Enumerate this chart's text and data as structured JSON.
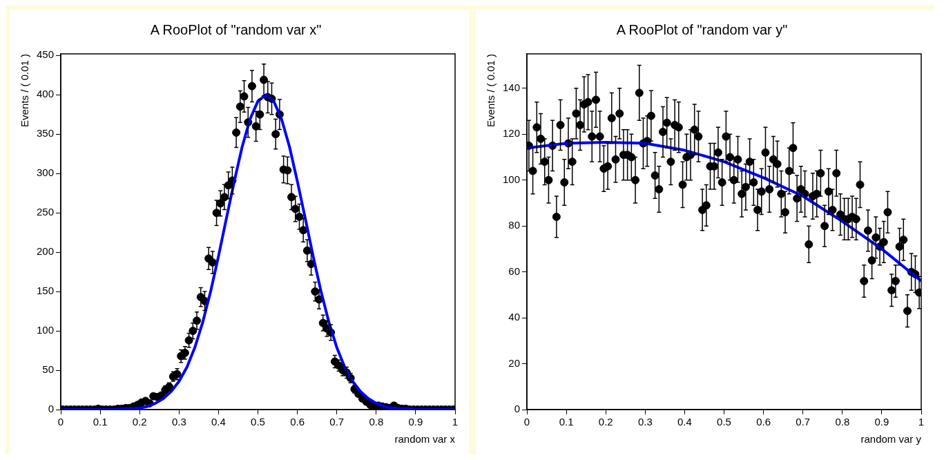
{
  "chart_data": [
    {
      "type": "scatter",
      "title": "A RooPlot of \"random var x\"",
      "xlabel": "random var x",
      "ylabel": "Events / ( 0.01 )",
      "xlim": [
        0,
        1
      ],
      "ylim": [
        0,
        452
      ],
      "xticks": [
        0,
        0.1,
        0.2,
        0.3,
        0.4,
        0.5,
        0.6,
        0.7,
        0.8,
        0.9,
        1
      ],
      "yticks": [
        0,
        50,
        100,
        150,
        200,
        250,
        300,
        350,
        400,
        450
      ],
      "series": [
        {
          "color": "#000000",
          "x": [
            0.005,
            0.015,
            0.025,
            0.035,
            0.045,
            0.055,
            0.065,
            0.075,
            0.085,
            0.095,
            0.105,
            0.115,
            0.125,
            0.135,
            0.145,
            0.155,
            0.165,
            0.175,
            0.185,
            0.195,
            0.205,
            0.215,
            0.225,
            0.235,
            0.245,
            0.255,
            0.265,
            0.275,
            0.285,
            0.295,
            0.305,
            0.315,
            0.325,
            0.335,
            0.345,
            0.355,
            0.365,
            0.375,
            0.385,
            0.395,
            0.405,
            0.415,
            0.425,
            0.435,
            0.445,
            0.455,
            0.465,
            0.475,
            0.485,
            0.495,
            0.505,
            0.515,
            0.525,
            0.535,
            0.545,
            0.555,
            0.565,
            0.575,
            0.585,
            0.595,
            0.605,
            0.615,
            0.625,
            0.635,
            0.645,
            0.655,
            0.665,
            0.675,
            0.685,
            0.695,
            0.705,
            0.715,
            0.725,
            0.735,
            0.745,
            0.755,
            0.765,
            0.775,
            0.785,
            0.795,
            0.805,
            0.815,
            0.825,
            0.835,
            0.845,
            0.855,
            0.865,
            0.875,
            0.885,
            0.895,
            0.905,
            0.915,
            0.925,
            0.935,
            0.945,
            0.955,
            0.965,
            0.975,
            0.985,
            0.995
          ],
          "values": [
            0,
            0,
            0,
            0,
            0,
            0,
            0,
            0,
            0,
            1,
            0,
            0,
            0,
            0,
            1,
            1,
            2,
            2,
            4,
            6,
            9,
            11,
            8,
            17,
            16,
            18,
            25,
            29,
            42,
            45,
            68,
            72,
            88,
            100,
            113,
            143,
            138,
            192,
            187,
            250,
            262,
            270,
            285,
            291,
            352,
            385,
            398,
            365,
            411,
            360,
            375,
            419,
            397,
            395,
            350,
            375,
            305,
            304,
            270,
            255,
            245,
            228,
            202,
            185,
            150,
            140,
            110,
            103,
            98,
            61,
            56,
            50,
            47,
            40,
            26,
            20,
            14,
            10,
            6,
            3,
            5,
            4,
            3,
            2,
            5,
            2,
            1,
            1,
            0,
            0,
            0,
            0,
            0,
            0,
            0,
            0,
            0,
            0,
            0,
            0
          ],
          "errors": [
            null,
            null,
            null,
            null,
            null,
            null,
            null,
            null,
            null,
            null,
            null,
            null,
            null,
            null,
            null,
            null,
            null,
            null,
            null,
            null,
            null,
            null,
            null,
            null,
            null,
            null,
            5,
            5,
            6,
            7,
            8,
            8,
            9,
            10,
            11,
            12,
            12,
            14,
            14,
            16,
            16,
            16,
            17,
            17,
            19,
            20,
            20,
            19,
            20,
            19,
            19,
            20,
            20,
            20,
            19,
            19,
            17,
            17,
            16,
            16,
            16,
            15,
            14,
            14,
            12,
            12,
            10,
            10,
            10,
            8,
            7,
            7,
            7,
            6,
            5,
            null,
            null,
            null,
            null,
            null,
            null,
            null,
            null,
            null,
            null,
            null,
            null,
            null,
            null,
            null,
            null,
            null,
            null,
            null,
            null,
            null,
            null,
            null,
            null,
            null
          ],
          "marker": "circle"
        },
        {
          "type": "line",
          "color": "#0000ff",
          "x": [
            0,
            0.02,
            0.04,
            0.06,
            0.08,
            0.1,
            0.12,
            0.14,
            0.16,
            0.18,
            0.2,
            0.22,
            0.24,
            0.26,
            0.28,
            0.3,
            0.32,
            0.34,
            0.36,
            0.38,
            0.4,
            0.42,
            0.44,
            0.46,
            0.48,
            0.5,
            0.52,
            0.54,
            0.56,
            0.58,
            0.6,
            0.62,
            0.64,
            0.66,
            0.68,
            0.7,
            0.72,
            0.74,
            0.76,
            0.78,
            0.8,
            0.82,
            0.84,
            0.86,
            0.88,
            0.9,
            0.92,
            0.94,
            0.96,
            0.98,
            1
          ],
          "values": [
            0,
            0,
            0,
            0,
            0,
            0,
            0,
            0,
            1,
            1,
            2,
            4,
            8,
            14,
            23,
            36,
            54,
            79,
            111,
            150,
            195,
            243,
            290,
            334,
            369,
            392,
            400,
            392,
            369,
            334,
            290,
            243,
            195,
            150,
            111,
            79,
            54,
            36,
            23,
            14,
            8,
            4,
            2,
            1,
            1,
            0,
            0,
            0,
            0,
            0,
            0
          ]
        }
      ]
    },
    {
      "type": "scatter",
      "title": "A RooPlot of \"random var y\"",
      "xlabel": "random var y",
      "ylabel": "Events / ( 0.01 )",
      "xlim": [
        0,
        1
      ],
      "ylim": [
        0,
        155
      ],
      "xticks": [
        0,
        0.1,
        0.2,
        0.3,
        0.4,
        0.5,
        0.6,
        0.7,
        0.8,
        0.9,
        1
      ],
      "yticks": [
        0,
        20,
        40,
        60,
        80,
        100,
        120,
        140
      ],
      "series": [
        {
          "color": "#000000",
          "x": [
            0.005,
            0.015,
            0.025,
            0.035,
            0.045,
            0.055,
            0.065,
            0.075,
            0.085,
            0.095,
            0.105,
            0.115,
            0.125,
            0.135,
            0.145,
            0.155,
            0.165,
            0.175,
            0.185,
            0.195,
            0.205,
            0.215,
            0.225,
            0.235,
            0.245,
            0.255,
            0.265,
            0.275,
            0.285,
            0.295,
            0.305,
            0.315,
            0.325,
            0.335,
            0.345,
            0.355,
            0.365,
            0.375,
            0.385,
            0.395,
            0.405,
            0.415,
            0.425,
            0.435,
            0.445,
            0.455,
            0.465,
            0.475,
            0.485,
            0.495,
            0.505,
            0.515,
            0.525,
            0.535,
            0.545,
            0.555,
            0.565,
            0.575,
            0.585,
            0.595,
            0.605,
            0.615,
            0.625,
            0.635,
            0.645,
            0.655,
            0.665,
            0.675,
            0.685,
            0.695,
            0.705,
            0.715,
            0.725,
            0.735,
            0.745,
            0.755,
            0.765,
            0.775,
            0.785,
            0.795,
            0.805,
            0.815,
            0.825,
            0.835,
            0.845,
            0.855,
            0.865,
            0.875,
            0.885,
            0.895,
            0.905,
            0.915,
            0.925,
            0.935,
            0.945,
            0.955,
            0.965,
            0.975,
            0.985,
            0.995
          ],
          "values": [
            115,
            104,
            123,
            118,
            108,
            100,
            115,
            84,
            124,
            99,
            116,
            108,
            129,
            124,
            133,
            134,
            119,
            135,
            119,
            105,
            106,
            127,
            109,
            129,
            111,
            111,
            110,
            100,
            138,
            116,
            117,
            128,
            102,
            96,
            121,
            125,
            108,
            124,
            123,
            98,
            110,
            111,
            122,
            119,
            87,
            89,
            106,
            106,
            112,
            99,
            119,
            110,
            100,
            109,
            94,
            97,
            108,
            99,
            87,
            95,
            112,
            96,
            109,
            107,
            94,
            86,
            104,
            114,
            92,
            96,
            94,
            72,
            93,
            94,
            103,
            80,
            95,
            87,
            103,
            85,
            83,
            83,
            84,
            83,
            98,
            56,
            78,
            65,
            75,
            71,
            73,
            86,
            52,
            56,
            71,
            74,
            43,
            60,
            59,
            51
          ],
          "errors": [
            11,
            10,
            11,
            11,
            10,
            10,
            11,
            9,
            11,
            10,
            11,
            10,
            11,
            11,
            12,
            12,
            11,
            12,
            11,
            10,
            10,
            11,
            10,
            11,
            11,
            11,
            10,
            10,
            12,
            11,
            11,
            11,
            10,
            10,
            11,
            11,
            10,
            11,
            11,
            10,
            10,
            11,
            11,
            11,
            9,
            9,
            10,
            10,
            11,
            10,
            11,
            10,
            10,
            10,
            10,
            10,
            10,
            10,
            9,
            10,
            11,
            10,
            10,
            10,
            10,
            9,
            10,
            11,
            10,
            10,
            10,
            8,
            10,
            10,
            10,
            9,
            10,
            9,
            10,
            9,
            9,
            9,
            9,
            9,
            10,
            7,
            9,
            8,
            9,
            8,
            9,
            9,
            7,
            7,
            8,
            9,
            7,
            8,
            8,
            7
          ],
          "marker": "circle"
        },
        {
          "type": "line",
          "color": "#0000ff",
          "x": [
            0,
            0.1,
            0.2,
            0.3,
            0.4,
            0.5,
            0.6,
            0.7,
            0.8,
            0.9,
            1
          ],
          "values": [
            114,
            116,
            116.5,
            116,
            113,
            108,
            101,
            93,
            82,
            70,
            56
          ]
        }
      ]
    }
  ]
}
